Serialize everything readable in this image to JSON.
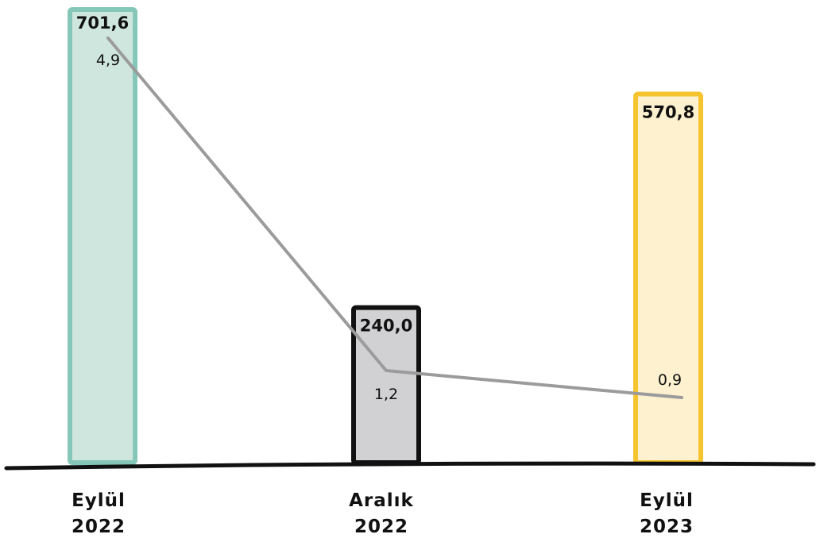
{
  "chart_data": {
    "type": "bar",
    "categories": [
      [
        "Eylül",
        "2022"
      ],
      [
        "Aralık",
        "2022"
      ],
      [
        "Eylül",
        "2023"
      ]
    ],
    "series": [
      {
        "type": "bar",
        "values": [
          701.6,
          240.0,
          570.8
        ],
        "labels": [
          "701,6",
          "240,0",
          "570,8"
        ]
      },
      {
        "type": "line",
        "values": [
          4.9,
          1.2,
          0.9
        ],
        "labels": [
          "4,9",
          "1,2",
          "0,9"
        ]
      }
    ],
    "colors": {
      "bar_fills": [
        "#cfe6df",
        "#d1d1d3",
        "#fdf1cf"
      ],
      "bar_strokes": [
        "#85c7b8",
        "#111111",
        "#f6c42e"
      ],
      "line": "#9b9b9b",
      "axis": "#111111"
    },
    "grid": false,
    "legend": "none"
  }
}
